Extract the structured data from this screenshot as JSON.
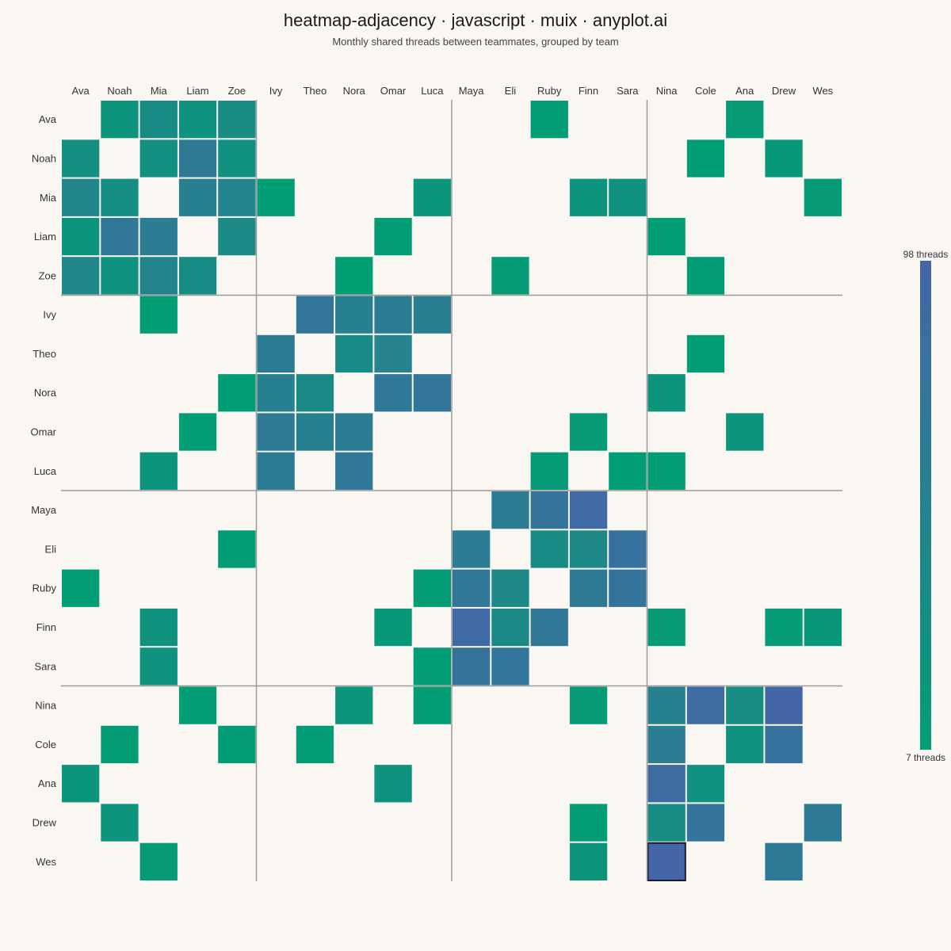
{
  "title": "heatmap-adjacency · javascript · muix · anyplot.ai",
  "subtitle": "Monthly shared threads between teammates, grouped by team",
  "colors": {
    "background": "#faf7f2",
    "low": "#009e73",
    "high": "#4466a8",
    "separator": "#9a9a9a",
    "highlight_border": "#1a1a2e"
  },
  "chart_data": {
    "type": "heatmap",
    "title": "heatmap-adjacency · javascript · muix · anyplot.ai",
    "subtitle": "Monthly shared threads between teammates, grouped by team",
    "nodes": [
      "Ava",
      "Noah",
      "Mia",
      "Liam",
      "Zoe",
      "Ivy",
      "Theo",
      "Nora",
      "Omar",
      "Luca",
      "Maya",
      "Eli",
      "Ruby",
      "Finn",
      "Sara",
      "Nina",
      "Cole",
      "Ana",
      "Drew",
      "Wes"
    ],
    "groups": [
      [
        "Ava",
        "Noah",
        "Mia",
        "Liam",
        "Zoe"
      ],
      [
        "Ivy",
        "Theo",
        "Nora",
        "Omar",
        "Luca"
      ],
      [
        "Maya",
        "Eli",
        "Ruby",
        "Finn",
        "Sara"
      ],
      [
        "Nina",
        "Cole",
        "Ana",
        "Drew",
        "Wes"
      ]
    ],
    "matrix": [
      [
        null,
        22,
        38,
        25,
        35,
        null,
        null,
        null,
        null,
        null,
        null,
        null,
        9,
        null,
        null,
        null,
        null,
        14,
        null,
        null
      ],
      [
        32,
        null,
        30,
        65,
        28,
        null,
        null,
        null,
        null,
        null,
        null,
        null,
        null,
        null,
        null,
        null,
        8,
        null,
        16,
        null
      ],
      [
        48,
        32,
        null,
        55,
        50,
        8,
        null,
        null,
        null,
        20,
        null,
        null,
        null,
        22,
        28,
        null,
        null,
        null,
        null,
        14
      ],
      [
        22,
        70,
        60,
        null,
        40,
        null,
        null,
        null,
        9,
        null,
        null,
        null,
        null,
        null,
        null,
        8,
        null,
        null,
        null,
        null
      ],
      [
        45,
        25,
        50,
        38,
        null,
        null,
        null,
        7,
        null,
        null,
        null,
        12,
        null,
        null,
        null,
        null,
        9,
        null,
        null,
        null
      ],
      [
        null,
        null,
        8,
        null,
        null,
        null,
        72,
        55,
        62,
        58,
        null,
        null,
        null,
        null,
        null,
        null,
        null,
        null,
        null,
        null
      ],
      [
        null,
        null,
        null,
        null,
        null,
        62,
        null,
        38,
        52,
        null,
        null,
        null,
        null,
        null,
        null,
        null,
        9,
        null,
        null,
        null
      ],
      [
        null,
        null,
        null,
        null,
        8,
        55,
        40,
        null,
        68,
        72,
        null,
        null,
        null,
        null,
        null,
        22,
        null,
        null,
        null,
        null
      ],
      [
        null,
        null,
        null,
        10,
        null,
        65,
        55,
        62,
        null,
        null,
        null,
        null,
        null,
        14,
        null,
        null,
        null,
        22,
        null,
        null
      ],
      [
        null,
        null,
        22,
        null,
        null,
        62,
        null,
        68,
        null,
        null,
        null,
        null,
        12,
        null,
        8,
        9,
        null,
        null,
        null,
        null
      ],
      [
        null,
        null,
        null,
        null,
        null,
        null,
        null,
        null,
        null,
        null,
        null,
        62,
        75,
        92,
        null,
        null,
        null,
        null,
        null,
        null
      ],
      [
        null,
        null,
        null,
        null,
        10,
        null,
        null,
        null,
        null,
        null,
        60,
        null,
        38,
        42,
        78,
        null,
        null,
        null,
        null,
        null
      ],
      [
        8,
        null,
        null,
        null,
        null,
        null,
        null,
        null,
        null,
        10,
        70,
        42,
        null,
        65,
        75,
        null,
        null,
        null,
        null,
        null
      ],
      [
        null,
        null,
        25,
        null,
        null,
        null,
        null,
        null,
        16,
        null,
        92,
        40,
        70,
        null,
        null,
        14,
        null,
        null,
        12,
        18
      ],
      [
        null,
        null,
        25,
        null,
        null,
        null,
        null,
        null,
        null,
        8,
        75,
        72,
        null,
        null,
        null,
        null,
        null,
        null,
        null,
        null
      ],
      [
        null,
        null,
        null,
        9,
        null,
        null,
        null,
        20,
        null,
        9,
        null,
        null,
        null,
        14,
        null,
        55,
        90,
        35,
        98,
        null
      ],
      [
        null,
        10,
        null,
        null,
        10,
        null,
        10,
        null,
        null,
        null,
        null,
        null,
        null,
        null,
        null,
        60,
        null,
        28,
        78,
        null
      ],
      [
        20,
        null,
        null,
        null,
        null,
        null,
        null,
        null,
        25,
        null,
        null,
        null,
        null,
        null,
        null,
        90,
        28,
        null,
        null,
        null
      ],
      [
        null,
        22,
        null,
        null,
        null,
        null,
        null,
        null,
        null,
        null,
        null,
        null,
        null,
        9,
        null,
        35,
        75,
        null,
        null,
        65
      ],
      [
        null,
        null,
        14,
        null,
        null,
        null,
        null,
        null,
        null,
        null,
        null,
        null,
        null,
        22,
        null,
        98,
        null,
        null,
        65,
        null
      ]
    ],
    "highlighted_cells": [
      [
        15,
        19
      ],
      [
        19,
        15
      ]
    ],
    "color_scale": {
      "min": 7,
      "max": 98,
      "min_label": "7 threads",
      "max_label": "98 threads",
      "low_color": "#009e73",
      "high_color": "#4466a8"
    },
    "legend_position": "right"
  }
}
